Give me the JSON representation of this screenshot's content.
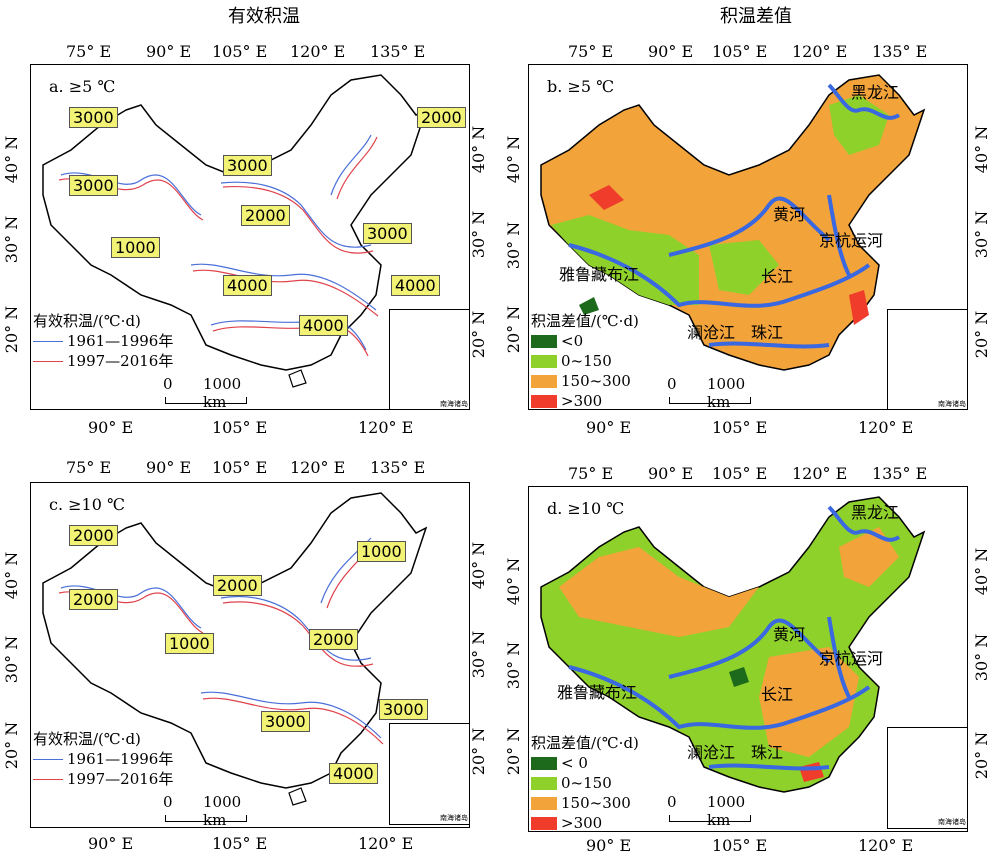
{
  "column_titles": [
    "有效积温",
    "积温差值"
  ],
  "lon_top": [
    "75° E",
    "90° E",
    "105° E",
    "120° E",
    "135° E"
  ],
  "lon_bottom": [
    "90° E",
    "105° E",
    "120° E"
  ],
  "lat": [
    "40° N",
    "30° N",
    "20° N"
  ],
  "panels": {
    "a": {
      "label": "a. ≥5 ℃",
      "isotherms": [
        "3000",
        "2000",
        "3000",
        "3000",
        "2000",
        "3000",
        "1000",
        "4000",
        "4000",
        "4000"
      ]
    },
    "b": {
      "label": "b. ≥5 ℃"
    },
    "c": {
      "label": "c. ≥10 ℃",
      "isotherms": [
        "2000",
        "1000",
        "2000",
        "2000",
        "1000",
        "2000",
        "3000",
        "3000",
        "4000"
      ]
    },
    "d": {
      "label": "d. ≥10 ℃"
    }
  },
  "legend_left": {
    "title": "有效积温/(℃·d)",
    "items": [
      {
        "label": "1961—1996年",
        "color": "#4a6fd8"
      },
      {
        "label": "1997—2016年",
        "color": "#e0424c"
      }
    ]
  },
  "legend_right": {
    "title": "积温差值/(℃·d)",
    "items_b": [
      {
        "label": "<0",
        "color": "#1d6a1d"
      },
      {
        "label": "0~150",
        "color": "#8fd12b"
      },
      {
        "label": "150~300",
        "color": "#f2a33a"
      },
      {
        "label": ">300",
        "color": "#f03c2a"
      }
    ],
    "items_d": [
      {
        "label": "< 0",
        "color": "#1d6a1d"
      },
      {
        "label": "0~150",
        "color": "#8fd12b"
      },
      {
        "label": "150~300",
        "color": "#f2a33a"
      },
      {
        "label": ">300",
        "color": "#f03c2a"
      }
    ]
  },
  "scale": {
    "zero": "0",
    "distance": "1000 km"
  },
  "inset_label": "南海诸岛",
  "rivers": [
    "黑龙江",
    "黄河",
    "京杭运河",
    "雅鲁藏布江",
    "长江",
    "澜沧江",
    "珠江"
  ],
  "colors": {
    "blue_line": "#4a6fd8",
    "red_line": "#e0424c",
    "river": "#3a68e0",
    "label_bg": "#f2f275",
    "orange": "#f2a33a",
    "green": "#8fd12b"
  }
}
